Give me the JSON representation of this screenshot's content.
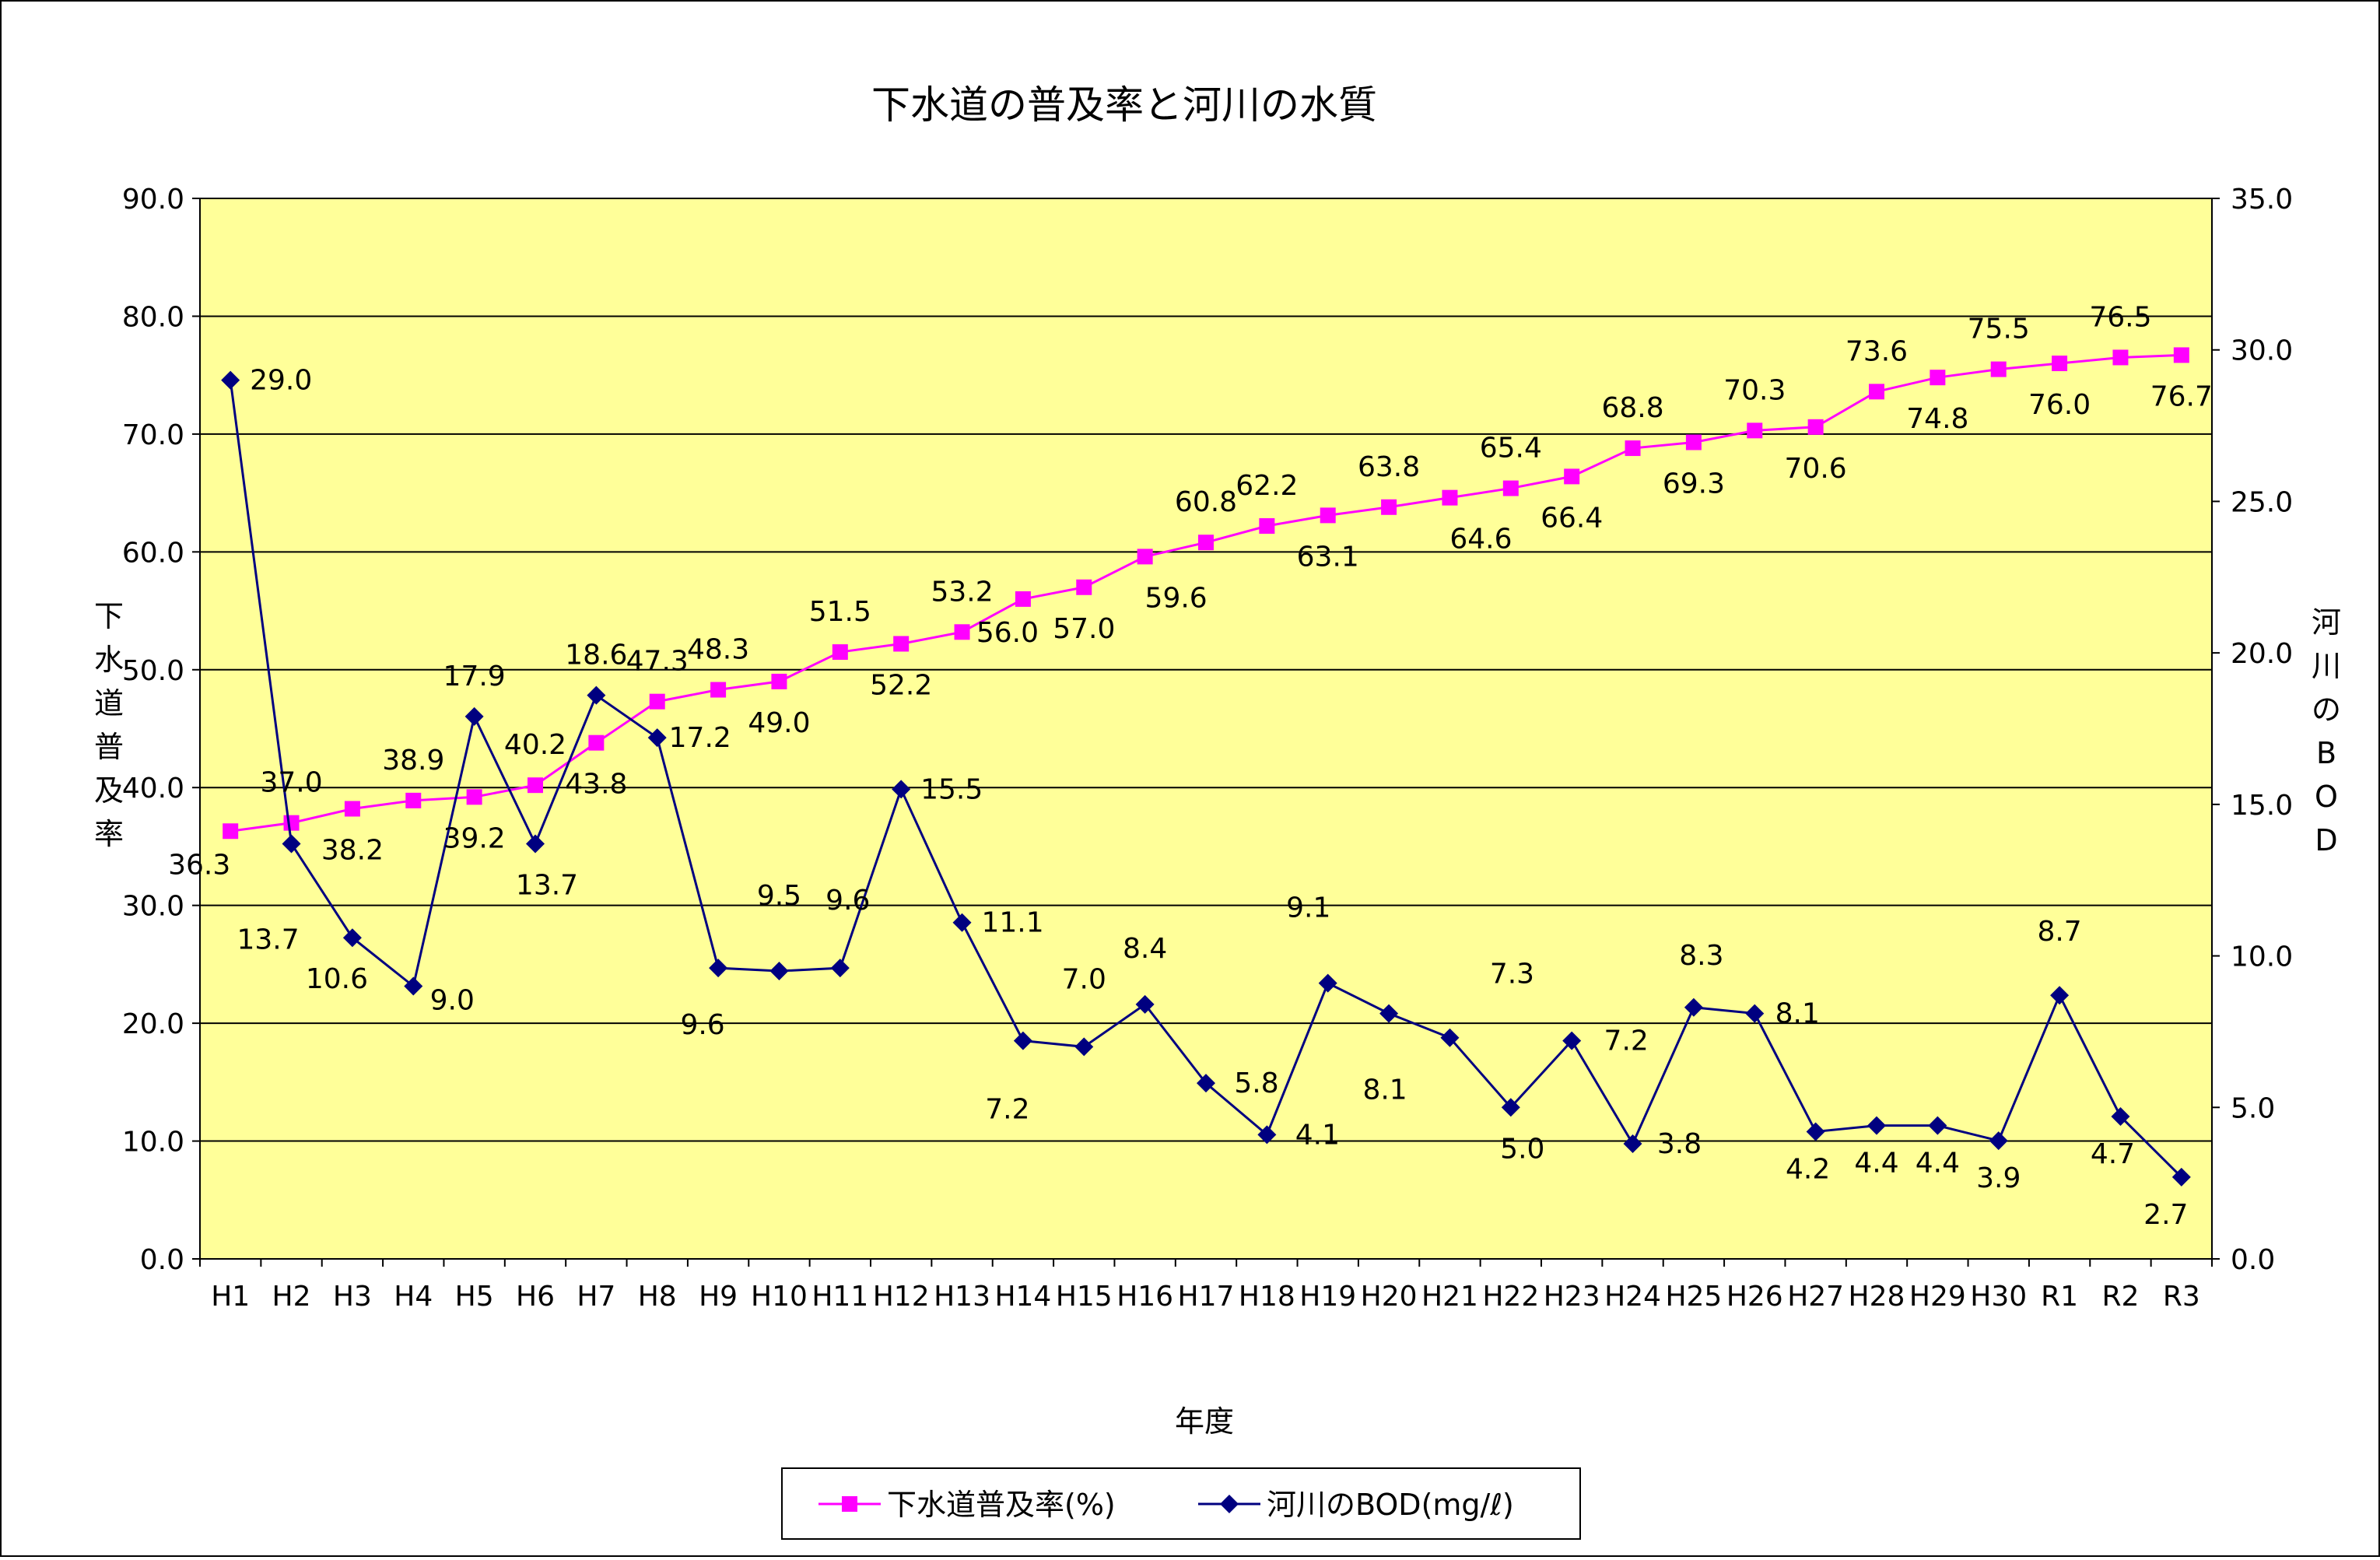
{
  "chart_data": {
    "type": "line",
    "title": "下水道の普及率と河川の水質",
    "xlabel": "年度",
    "ylabel_left": "下水道普及率",
    "ylabel_right": "河川のBOD",
    "ylim_left": [
      0,
      90
    ],
    "ylim_right": [
      0,
      35
    ],
    "yticks_left": [
      "0.0",
      "10.0",
      "20.0",
      "30.0",
      "40.0",
      "50.0",
      "60.0",
      "70.0",
      "80.0",
      "90.0"
    ],
    "yticks_right": [
      "0.0",
      "5.0",
      "10.0",
      "15.0",
      "20.0",
      "25.0",
      "30.0",
      "35.0"
    ],
    "grid": true,
    "plot_background": "#ffff99",
    "legend_position": "bottom",
    "categories": [
      "H1",
      "H2",
      "H3",
      "H4",
      "H5",
      "H6",
      "H7",
      "H8",
      "H9",
      "H10",
      "H11",
      "H12",
      "H13",
      "H14",
      "H15",
      "H16",
      "H17",
      "H18",
      "H19",
      "H20",
      "H21",
      "H22",
      "H23",
      "H24",
      "H25",
      "H26",
      "H27",
      "H28",
      "H29",
      "H30",
      "R1",
      "R2",
      "R3"
    ],
    "series": [
      {
        "name": "下水道普及率(%)",
        "axis": "left",
        "color": "#ff00ff",
        "marker": "square",
        "values": [
          36.3,
          37.0,
          38.2,
          38.9,
          39.2,
          40.2,
          43.8,
          47.3,
          48.3,
          49.0,
          51.5,
          52.2,
          53.2,
          56.0,
          57.0,
          59.6,
          60.8,
          62.2,
          63.1,
          63.8,
          64.6,
          65.4,
          66.4,
          68.8,
          69.3,
          70.3,
          70.6,
          73.6,
          74.8,
          75.5,
          76.0,
          76.5,
          76.7
        ],
        "labels": [
          "36.3",
          "37.0",
          "38.2",
          "38.9",
          "39.2",
          "40.2",
          "43.8",
          "47.3",
          "48.3",
          "49.0",
          "51.5",
          "52.2",
          "53.2",
          "56.0",
          "57.0",
          "59.6",
          "60.8",
          "62.2",
          "63.1",
          "63.8",
          "64.6",
          "65.4",
          "66.4",
          "68.8",
          "69.3",
          "70.3",
          "70.6",
          "73.6",
          "74.8",
          "75.5",
          "76.0",
          "76.5",
          "76.7"
        ]
      },
      {
        "name": "河川のBOD(mg/ℓ)",
        "axis": "right",
        "color": "#000080",
        "marker": "diamond",
        "values": [
          29.0,
          13.7,
          10.6,
          9.0,
          17.9,
          13.7,
          18.6,
          17.2,
          9.6,
          9.5,
          9.6,
          15.5,
          11.1,
          7.2,
          7.0,
          8.4,
          5.8,
          4.1,
          9.1,
          8.1,
          7.3,
          5.0,
          7.2,
          3.8,
          8.3,
          8.1,
          4.2,
          4.4,
          4.4,
          3.9,
          8.7,
          4.7,
          2.7
        ],
        "labels": [
          "29.0",
          "13.7",
          "10.6",
          "9.0",
          "17.9",
          "13.7",
          "18.6",
          "17.2",
          "9.6",
          "9.5",
          "9.6",
          "15.5",
          "11.1",
          "7.2",
          "7.0",
          "8.4",
          "5.8",
          "4.1",
          "9.1",
          "8.1",
          "7.3",
          "5.0",
          "7.2",
          "3.8",
          "8.3",
          "8.1",
          "4.2",
          "4.4",
          "4.4",
          "3.9",
          "8.7",
          "4.7",
          "2.7"
        ]
      }
    ]
  }
}
